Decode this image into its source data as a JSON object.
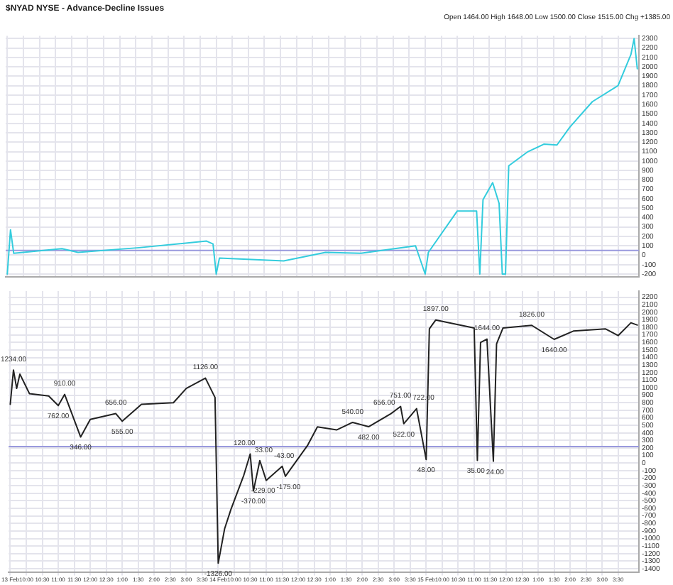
{
  "chart_data": [
    {
      "type": "line",
      "title": "$NYAD NYSE - Advance-Decline Issues",
      "subtitle": "Open 1464.00 High 1648.00 Low 1500.00 Close 1515.00 Chg +1385.00",
      "marker": "none",
      "grid": true,
      "legend": false,
      "tick_labels": "y",
      "categories": [
        null,
        null,
        null,
        null,
        null,
        null,
        null,
        null,
        null,
        null,
        null,
        null,
        null,
        null,
        null,
        null,
        null,
        null,
        null,
        null,
        null,
        null,
        null,
        null,
        null,
        null,
        null,
        null,
        null,
        null,
        null,
        null,
        null,
        null,
        null,
        null,
        null,
        null,
        null,
        null,
        null,
        null,
        null,
        null,
        null,
        null,
        null,
        null,
        null,
        null,
        null,
        null,
        null,
        null,
        null,
        null,
        null,
        null,
        null,
        null,
        null,
        null,
        null,
        null,
        null,
        null,
        null,
        null,
        null,
        null,
        null,
        null,
        null,
        null,
        null,
        null,
        null,
        null,
        null,
        null,
        null,
        null,
        null,
        null,
        null,
        null,
        null,
        null,
        null,
        null,
        null,
        null,
        null,
        null,
        null,
        null,
        null,
        null,
        null,
        null,
        null,
        null,
        null,
        null,
        null,
        null,
        null,
        null,
        null,
        null,
        null,
        null,
        null,
        null,
        null,
        null,
        null,
        null,
        null,
        null,
        null,
        null,
        null,
        null,
        null,
        null,
        null,
        null,
        null,
        null,
        null,
        null,
        null,
        null,
        null,
        null,
        null,
        null,
        null,
        null,
        null,
        null,
        null,
        null,
        null,
        null,
        null,
        null,
        null,
        null,
        null,
        null,
        null,
        null,
        null,
        null,
        null,
        null,
        null,
        null,
        null,
        null,
        null,
        null,
        null,
        null,
        null,
        null,
        null,
        null,
        null,
        null,
        null,
        null,
        null,
        null,
        null,
        null,
        null,
        null,
        null,
        null,
        null,
        null,
        null,
        null,
        null,
        null,
        null,
        null,
        null,
        null,
        null,
        null,
        null,
        null,
        null
      ],
      "ylim": [
        -230,
        2330
      ],
      "yticks": [
        -200,
        -100,
        0,
        100,
        200,
        300,
        400,
        500,
        600,
        700,
        800,
        900,
        1000,
        1100,
        1200,
        1300,
        1400,
        1500,
        1600,
        1700,
        1800,
        1900,
        2000,
        2100,
        2200,
        2300
      ],
      "ref_lines": [
        {
          "axis": "y",
          "value": 50,
          "color": "#9999dd"
        }
      ],
      "series": [
        {
          "color": "#33ccdd",
          "values": [
            -200,
            270,
            20,
            null,
            null,
            null,
            null,
            null,
            null,
            null,
            null,
            null,
            null,
            null,
            null,
            null,
            null,
            70,
            null,
            null,
            null,
            null,
            30,
            null,
            null,
            null,
            null,
            null,
            null,
            null,
            null,
            null,
            null,
            null,
            null,
            null,
            null,
            null,
            null,
            null,
            null,
            80,
            null,
            null,
            null,
            null,
            null,
            null,
            null,
            null,
            null,
            null,
            null,
            null,
            null,
            null,
            null,
            null,
            null,
            null,
            null,
            null,
            150,
            null,
            120,
            -200,
            -30,
            null,
            null,
            null,
            null,
            null,
            null,
            null,
            null,
            null,
            null,
            null,
            null,
            null,
            null,
            null,
            null,
            null,
            null,
            null,
            -60,
            null,
            null,
            null,
            null,
            null,
            null,
            null,
            null,
            null,
            null,
            null,
            null,
            30,
            null,
            null,
            null,
            null,
            null,
            null,
            null,
            null,
            null,
            null,
            20,
            null,
            null,
            null,
            null,
            null,
            null,
            null,
            null,
            null,
            null,
            null,
            null,
            null,
            null,
            null,
            null,
            100,
            null,
            null,
            -200,
            30,
            null,
            null,
            null,
            null,
            null,
            null,
            null,
            null,
            470,
            null,
            null,
            null,
            null,
            null,
            470,
            -200,
            590,
            null,
            null,
            770,
            null,
            550,
            -200,
            -200,
            950,
            null,
            null,
            null,
            null,
            null,
            1100,
            null,
            null,
            null,
            null,
            1180,
            null,
            null,
            null,
            1170,
            null,
            null,
            null,
            1360,
            null,
            null,
            null,
            null,
            null,
            null,
            1630,
            null,
            null,
            null,
            null,
            null,
            null,
            null,
            1800,
            null,
            null,
            null,
            2130,
            2300,
            1980
          ]
        }
      ]
    },
    {
      "type": "line",
      "marker": "none",
      "grid": true,
      "legend": false,
      "categories": [
        "13 Feb",
        null,
        null,
        null,
        null,
        "10:00",
        null,
        null,
        null,
        null,
        "10:30",
        null,
        null,
        null,
        null,
        "11:00",
        null,
        null,
        null,
        null,
        "11:30",
        null,
        null,
        null,
        null,
        "12:00",
        null,
        null,
        null,
        null,
        "12:30",
        null,
        null,
        null,
        null,
        "1:00",
        null,
        null,
        null,
        null,
        "1:30",
        null,
        null,
        null,
        null,
        "2:00",
        null,
        null,
        null,
        null,
        "2:30",
        null,
        null,
        null,
        null,
        "3:00",
        null,
        null,
        null,
        null,
        "3:30",
        null,
        null,
        null,
        null,
        "14 Feb",
        null,
        null,
        null,
        null,
        "10:00",
        null,
        null,
        null,
        null,
        "10:30",
        null,
        null,
        null,
        null,
        "11:00",
        null,
        null,
        null,
        null,
        "11:30",
        null,
        null,
        null,
        null,
        "12:00",
        null,
        null,
        null,
        null,
        "12:30",
        null,
        null,
        null,
        null,
        "1:00",
        null,
        null,
        null,
        null,
        "1:30",
        null,
        null,
        null,
        null,
        "2:00",
        null,
        null,
        null,
        null,
        "2:30",
        null,
        null,
        null,
        null,
        "3:00",
        null,
        null,
        null,
        null,
        "3:30",
        null,
        null,
        null,
        null,
        "15 Feb",
        null,
        null,
        null,
        null,
        "10:00",
        null,
        null,
        null,
        null,
        "10:30",
        null,
        null,
        null,
        null,
        "11:00",
        null,
        null,
        null,
        null,
        "11:30",
        null,
        null,
        null,
        null,
        "12:00",
        null,
        null,
        null,
        null,
        "12:30",
        null,
        null,
        null,
        null,
        "1:00",
        null,
        null,
        null,
        null,
        "1:30",
        null,
        null,
        null,
        null,
        "2:00",
        null,
        null,
        null,
        null,
        "2:30",
        null,
        null,
        null,
        null,
        "3:00",
        null,
        null,
        null,
        null,
        "3:30",
        null,
        null,
        null,
        null,
        null,
        null
      ],
      "ylim": [
        -1450,
        2280
      ],
      "yticks": [
        -1400,
        -1300,
        -1200,
        -1100,
        -1000,
        -900,
        -800,
        -700,
        -600,
        -500,
        -400,
        -300,
        -200,
        -100,
        0,
        100,
        200,
        300,
        400,
        500,
        600,
        700,
        800,
        900,
        1000,
        1100,
        1200,
        1300,
        1400,
        1500,
        1600,
        1700,
        1800,
        1900,
        2000,
        2100,
        2200
      ],
      "ref_lines": [
        {
          "axis": "y",
          "value": 220,
          "color": "#9999dd"
        }
      ],
      "series": [
        {
          "color": "#222222",
          "values": [
            780,
            1234,
            990,
            1180,
            null,
            null,
            920,
            null,
            null,
            null,
            null,
            null,
            890,
            null,
            null,
            762,
            null,
            910,
            null,
            null,
            null,
            null,
            346,
            null,
            null,
            580,
            null,
            null,
            null,
            null,
            null,
            null,
            null,
            656,
            null,
            555,
            null,
            null,
            null,
            null,
            null,
            780,
            null,
            null,
            null,
            null,
            null,
            null,
            null,
            null,
            null,
            800,
            null,
            null,
            null,
            990,
            null,
            null,
            null,
            null,
            null,
            1126,
            null,
            null,
            870,
            -1326,
            null,
            -870,
            null,
            -610,
            null,
            null,
            null,
            -160,
            null,
            120,
            -370,
            null,
            33,
            null,
            -229,
            null,
            null,
            null,
            null,
            -43,
            -175,
            null,
            null,
            null,
            null,
            null,
            null,
            240,
            null,
            null,
            480,
            null,
            null,
            null,
            null,
            null,
            440,
            null,
            null,
            null,
            null,
            540,
            null,
            null,
            null,
            null,
            482,
            null,
            null,
            null,
            null,
            null,
            null,
            656,
            null,
            null,
            751,
            522,
            null,
            null,
            null,
            722,
            null,
            null,
            48,
            1780,
            null,
            1897,
            null,
            null,
            null,
            null,
            null,
            null,
            null,
            null,
            null,
            null,
            null,
            1790,
            35,
            1600,
            null,
            1644,
            null,
            24,
            1580,
            null,
            1790,
            null,
            null,
            null,
            null,
            null,
            null,
            null,
            null,
            1826,
            null,
            null,
            null,
            null,
            null,
            null,
            1640,
            null,
            null,
            null,
            null,
            null,
            1750,
            null,
            null,
            null,
            null,
            null,
            null,
            null,
            null,
            null,
            1780,
            null,
            null,
            null,
            1690,
            null,
            null,
            null,
            1860,
            null,
            1830
          ]
        }
      ],
      "annotations": [
        {
          "text": "1234.00",
          "y": 1234
        },
        {
          "text": "762.00",
          "y": 762
        },
        {
          "text": "910.00",
          "y": 910
        },
        {
          "text": "346.00",
          "y": 346
        },
        {
          "text": "656.00",
          "y": 656
        },
        {
          "text": "555.00",
          "y": 555
        },
        {
          "text": "1126.00",
          "y": 1126
        },
        {
          "text": "-1326.00",
          "y": -1326
        },
        {
          "text": "120.00",
          "y": 120
        },
        {
          "text": "-370.00",
          "y": -370
        },
        {
          "text": "33.00",
          "y": 33
        },
        {
          "text": "-229.00",
          "y": -229
        },
        {
          "text": "-43.00",
          "y": -43
        },
        {
          "text": "-175.00",
          "y": -175
        },
        {
          "text": "540.00",
          "y": 540
        },
        {
          "text": "482.00",
          "y": 482
        },
        {
          "text": "656.00",
          "y": 656
        },
        {
          "text": "751.00",
          "y": 751
        },
        {
          "text": "522.00",
          "y": 522
        },
        {
          "text": "722.00",
          "y": 722
        },
        {
          "text": "48.00",
          "y": 48
        },
        {
          "text": "1897.00",
          "y": 1897
        },
        {
          "text": "35.00",
          "y": 35
        },
        {
          "text": "1644.00",
          "y": 1644
        },
        {
          "text": "24.00",
          "y": 24
        },
        {
          "text": "1826.00",
          "y": 1826
        },
        {
          "text": "1640.00",
          "y": 1640
        }
      ]
    }
  ]
}
